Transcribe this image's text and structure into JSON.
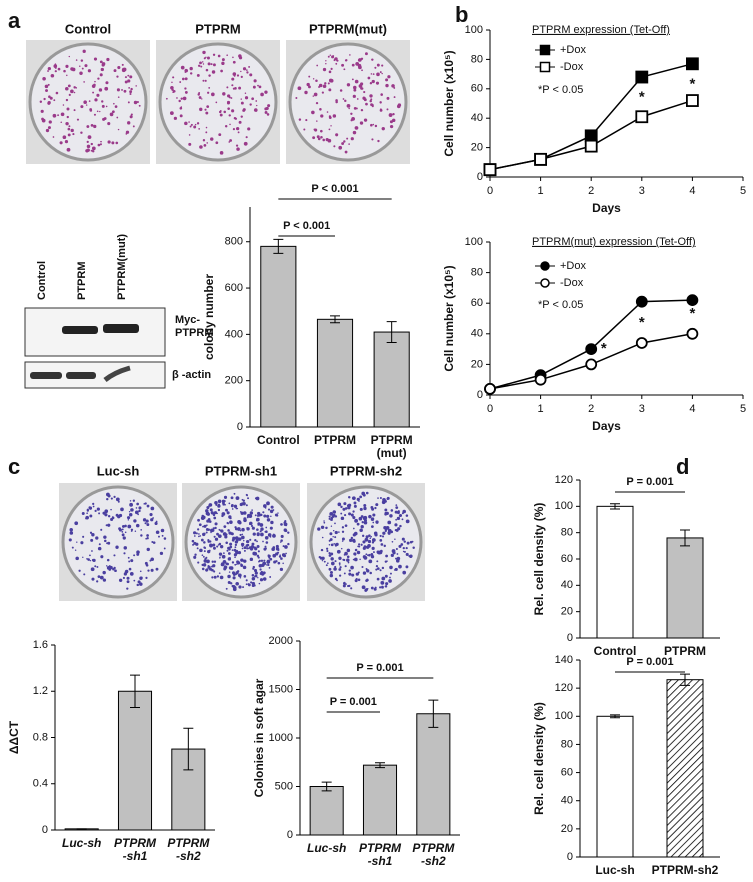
{
  "panel_labels": [
    "a",
    "b",
    "c",
    "d"
  ],
  "plates": {
    "a": [
      "Control",
      "PTPRM",
      "PTPRM(mut)"
    ],
    "c": [
      "Luc-sh",
      "PTPRM-sh1",
      "PTPRM-sh2"
    ]
  },
  "blot": {
    "lanes": [
      "Control",
      "PTPRM",
      "PTPRM(mut)"
    ],
    "bands": [
      "Myc-\nPTPRM",
      "β -actin"
    ]
  },
  "chart_data": [
    {
      "type": "bar",
      "ylabel": "colony number",
      "categories": [
        "Control",
        "PTPRM",
        "PTPRM\n(mut)"
      ],
      "values": [
        780,
        465,
        410
      ],
      "errors": [
        30,
        15,
        45
      ],
      "colors": [
        "#c0c0c0",
        "#c0c0c0",
        "#c0c0c0"
      ],
      "ylim": [
        0,
        950
      ],
      "yticks": [
        0,
        200,
        400,
        600,
        800
      ],
      "annotations": [
        "P < 0.001",
        "P < 0.001"
      ]
    },
    {
      "type": "line",
      "title": "PTPRM expression (Tet-Off)",
      "xlabel": "Days",
      "ylabel": "Cell number (x10⁵)",
      "x": [
        0,
        1,
        2,
        3,
        4
      ],
      "xlim": [
        0,
        5
      ],
      "xticks": [
        0,
        1,
        2,
        3,
        4,
        5
      ],
      "ylim": [
        0,
        100
      ],
      "yticks": [
        0,
        20,
        40,
        60,
        80,
        100
      ],
      "marker": "square",
      "series": [
        {
          "name": "+Dox",
          "color": "#000000",
          "filled": true,
          "values": [
            5,
            12,
            28,
            68,
            77
          ]
        },
        {
          "name": "-Dox",
          "color": "#000000",
          "filled": false,
          "values": [
            5,
            12,
            21,
            41,
            52
          ]
        }
      ],
      "annotations": [
        "*P < 0.05",
        "*",
        "*"
      ]
    },
    {
      "type": "line",
      "title": "PTPRM(mut) expression (Tet-Off)",
      "xlabel": "Days",
      "ylabel": "Cell number (x10⁵)",
      "x": [
        0,
        1,
        2,
        3,
        4
      ],
      "xlim": [
        0,
        5
      ],
      "xticks": [
        0,
        1,
        2,
        3,
        4,
        5
      ],
      "ylim": [
        0,
        100
      ],
      "yticks": [
        0,
        20,
        40,
        60,
        80,
        100
      ],
      "marker": "circle",
      "series": [
        {
          "name": "+Dox",
          "color": "#000000",
          "filled": true,
          "values": [
            4,
            13,
            30,
            61,
            62
          ]
        },
        {
          "name": "-Dox",
          "color": "#000000",
          "filled": false,
          "values": [
            4,
            10,
            20,
            34,
            40
          ]
        }
      ],
      "annotations": [
        "*P < 0.05",
        "*",
        "*",
        "*"
      ]
    },
    {
      "type": "bar",
      "ylabel": "ΔΔCT",
      "categories": [
        "Luc-sh",
        "PTPRM\n-sh1",
        "PTPRM\n-sh2"
      ],
      "values": [
        0.01,
        1.2,
        0.7
      ],
      "errors": [
        0,
        0.14,
        0.18
      ],
      "colors": [
        "#c0c0c0",
        "#c0c0c0",
        "#c0c0c0"
      ],
      "ylim": [
        0,
        1.6
      ],
      "yticks": [
        0,
        0.4,
        0.8,
        1.2,
        1.6
      ],
      "annotations": []
    },
    {
      "type": "bar",
      "ylabel": "Colonies in soft agar",
      "categories": [
        "Luc-sh",
        "PTPRM\n-sh1",
        "PTPRM\n-sh2"
      ],
      "values": [
        500,
        720,
        1250
      ],
      "errors": [
        45,
        25,
        140
      ],
      "colors": [
        "#c0c0c0",
        "#c0c0c0",
        "#c0c0c0"
      ],
      "ylim": [
        0,
        2000
      ],
      "yticks": [
        0,
        500,
        1000,
        1500,
        2000
      ],
      "annotations": [
        "P = 0.001",
        "P = 0.001"
      ]
    },
    {
      "type": "bar",
      "ylabel": "Rel. cell density (%)",
      "categories": [
        "Control",
        "PTPRM"
      ],
      "values": [
        100,
        76
      ],
      "errors": [
        2,
        6
      ],
      "colors": [
        "#ffffff",
        "#c0c0c0"
      ],
      "ylim": [
        0,
        120
      ],
      "yticks": [
        0,
        20,
        40,
        60,
        80,
        100,
        120
      ],
      "annotations": [
        "P = 0.001"
      ]
    },
    {
      "type": "bar",
      "ylabel": "Rel. cell density (%)",
      "categories": [
        "Luc-sh",
        "PTPRM-sh2"
      ],
      "values": [
        100,
        126
      ],
      "errors": [
        1,
        4
      ],
      "colors": [
        "#ffffff",
        "#ffffff"
      ],
      "hatch": [
        false,
        true
      ],
      "ylim": [
        0,
        140
      ],
      "yticks": [
        0,
        20,
        40,
        60,
        80,
        100,
        120,
        140
      ],
      "annotations": [
        "P = 0.001"
      ]
    }
  ]
}
